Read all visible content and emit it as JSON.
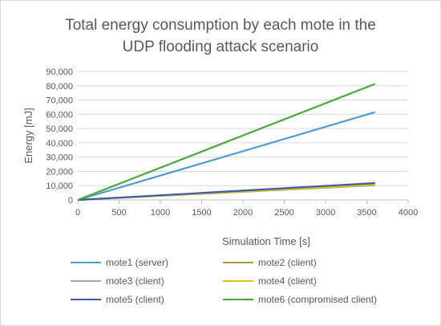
{
  "chart_data": {
    "type": "line",
    "title_lines": [
      "Total energy consumption by each mote in the",
      "UDP flooding attack scenario"
    ],
    "xlabel": "Simulation Time [s]",
    "ylabel": "Energy [mJ]",
    "xlim": [
      0,
      4000
    ],
    "ylim": [
      0,
      90000
    ],
    "x_ticks": [
      0,
      500,
      1000,
      1500,
      2000,
      2500,
      3000,
      3500,
      4000
    ],
    "y_ticks": [
      0,
      10000,
      20000,
      30000,
      40000,
      50000,
      60000,
      70000,
      80000,
      90000
    ],
    "y_tick_labels": [
      "0",
      "10,000",
      "20,000",
      "30,000",
      "40,000",
      "50,000",
      "60,000",
      "70,000",
      "80,000",
      "90,000"
    ],
    "grid": "horizontal",
    "legend_position": "bottom",
    "series": [
      {
        "name": "mote1 (server)",
        "color": "#4f9bd6",
        "x": [
          0,
          3600
        ],
        "y": [
          0,
          61500
        ]
      },
      {
        "name": "mote2 (client)",
        "color": "#a89a3c",
        "x": [
          0,
          3600
        ],
        "y": [
          0,
          10300
        ]
      },
      {
        "name": "mote3 (client)",
        "color": "#a5a5a5",
        "x": [
          0,
          3600
        ],
        "y": [
          0,
          10500
        ]
      },
      {
        "name": "mote4 (client)",
        "color": "#e3c20c",
        "x": [
          0,
          3600
        ],
        "y": [
          0,
          10800
        ]
      },
      {
        "name": "mote5 (client)",
        "color": "#3f5aa8",
        "x": [
          0,
          3600
        ],
        "y": [
          0,
          11800
        ]
      },
      {
        "name": "mote6 (compromised client)",
        "color": "#4aa83a",
        "x": [
          0,
          3600
        ],
        "y": [
          0,
          81300
        ]
      }
    ]
  }
}
